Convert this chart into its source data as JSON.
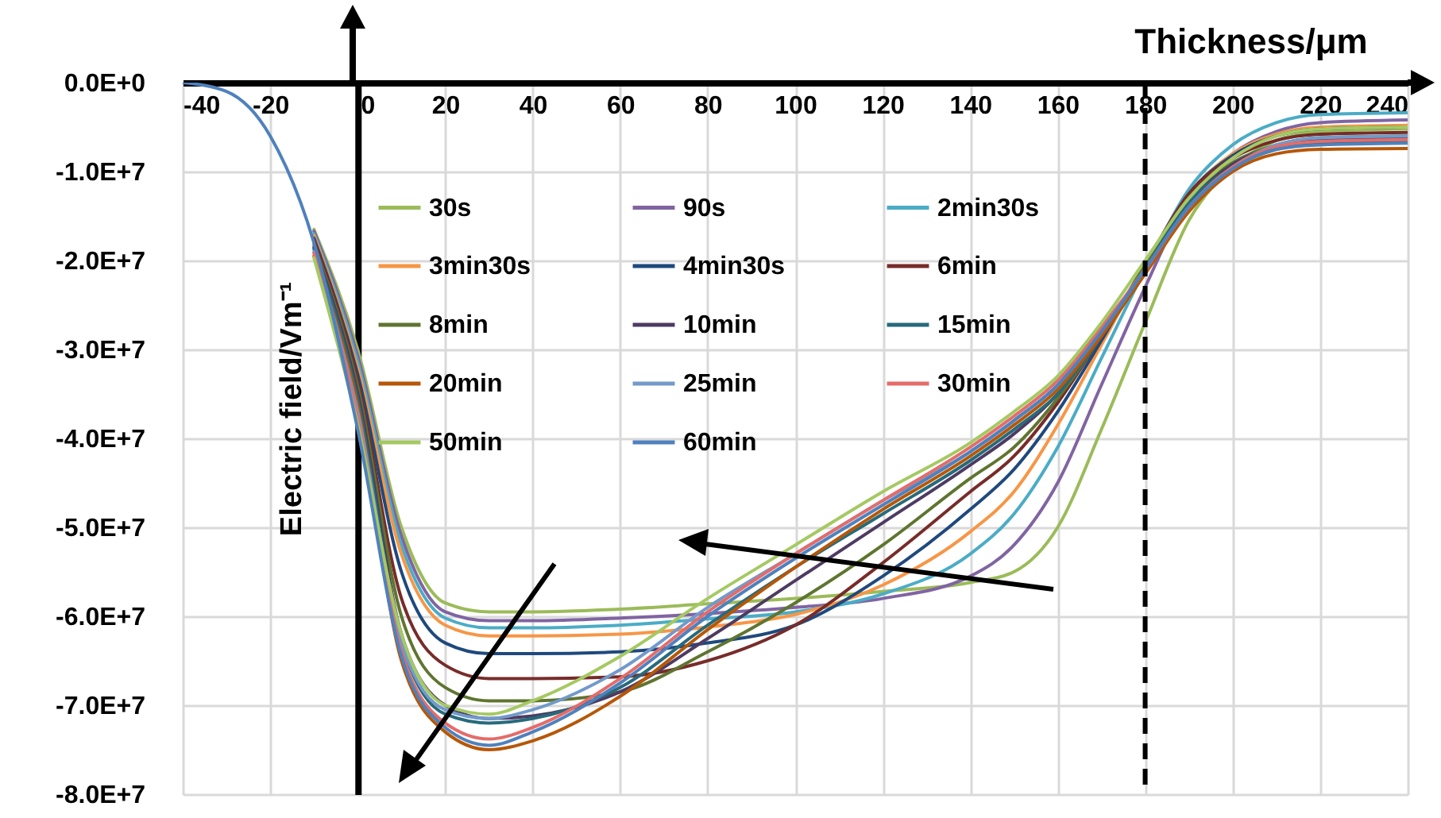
{
  "chart_data": {
    "type": "line",
    "xlabel": "Thickness/μm",
    "ylabel": "Electric field/Vm⁻¹",
    "x": [
      -40,
      -30,
      -20,
      -10,
      0,
      10,
      20,
      30,
      40,
      60,
      80,
      100,
      120,
      140,
      150,
      160,
      170,
      180,
      190,
      200,
      210,
      220,
      240
    ],
    "series": [
      {
        "name": "30s",
        "color": "#9bbb59",
        "values": [
          null,
          null,
          null,
          -16500000.0,
          -30000000.0,
          -50000000.0,
          -58500000.0,
          -59500000.0,
          -59500000.0,
          -59200000.0,
          -58600000.0,
          -58000000.0,
          -57200000.0,
          -56200000.0,
          -55000000.0,
          -50000000.0,
          -39000000.0,
          -27000000.0,
          -15500000.0,
          -9500000.0,
          -6500000.0,
          -5500000.0,
          -5200000.0
        ]
      },
      {
        "name": "90s",
        "color": "#8064a2",
        "values": [
          null,
          null,
          null,
          -16700000.0,
          -30700000.0,
          -51000000.0,
          -59500000.0,
          -60500000.0,
          -60500000.0,
          -60200000.0,
          -59700000.0,
          -59000000.0,
          -58000000.0,
          -55500000.0,
          -52000000.0,
          -45000000.0,
          -34000000.0,
          -23000000.0,
          -13000000.0,
          -8000000.0,
          -5500000.0,
          -4500000.0,
          -4200000.0
        ]
      },
      {
        "name": "2min30s",
        "color": "#4bacc6",
        "values": [
          null,
          null,
          null,
          -17000000.0,
          -31400000.0,
          -52000000.0,
          -60200000.0,
          -61300000.0,
          -61300000.0,
          -61000000.0,
          -60300000.0,
          -59500000.0,
          -57500000.0,
          -53000000.0,
          -48500000.0,
          -41000000.0,
          -31000000.0,
          -21000000.0,
          -12000000.0,
          -7000000.0,
          -4500000.0,
          -3600000.0,
          -3400000.0
        ]
      },
      {
        "name": "3min30s",
        "color": "#f79646",
        "values": [
          null,
          null,
          null,
          -17200000.0,
          -32100000.0,
          -53000000.0,
          -61000000.0,
          -62200000.0,
          -62200000.0,
          -62000000.0,
          -61200000.0,
          -59800000.0,
          -56500000.0,
          -50500000.0,
          -46000000.0,
          -38500000.0,
          -29500000.0,
          -20500000.0,
          -12500000.0,
          -8000000.0,
          -5800000.0,
          -5000000.0,
          -4800000.0
        ]
      },
      {
        "name": "4min30s",
        "color": "#1f497d",
        "values": [
          null,
          null,
          null,
          -17500000.0,
          -32800000.0,
          -55000000.0,
          -63000000.0,
          -64200000.0,
          -64200000.0,
          -64000000.0,
          -63000000.0,
          -61000000.0,
          -55500000.0,
          -48000000.0,
          -43500000.0,
          -37000000.0,
          -29000000.0,
          -20500000.0,
          -12500000.0,
          -8200000.0,
          -6000000.0,
          -5200000.0,
          -5000000.0
        ]
      },
      {
        "name": "6min",
        "color": "#772c2a",
        "values": [
          null,
          null,
          null,
          -17700000.0,
          -33500000.0,
          -58000000.0,
          -65500000.0,
          -67000000.0,
          -67000000.0,
          -66800000.0,
          -65000000.0,
          -61000000.0,
          -54000000.0,
          -46000000.0,
          -42000000.0,
          -36000000.0,
          -28500000.0,
          -20500000.0,
          -12500000.0,
          -8500000.0,
          -6500000.0,
          -5800000.0,
          -5600000.0
        ]
      },
      {
        "name": "8min",
        "color": "#5f7530",
        "values": [
          null,
          null,
          null,
          -18200000.0,
          -34200000.0,
          -60000000.0,
          -68000000.0,
          -69500000.0,
          -69500000.0,
          -68500000.0,
          -64000000.0,
          -58500000.0,
          -52000000.0,
          -44500000.0,
          -41000000.0,
          -35500000.0,
          -28500000.0,
          -20500000.0,
          -13000000.0,
          -9000000.0,
          -7000000.0,
          -6200000.0,
          -6000000.0
        ]
      },
      {
        "name": "10min",
        "color": "#4d3b62",
        "values": [
          null,
          null,
          null,
          -18500000.0,
          -34900000.0,
          -62000000.0,
          -70000000.0,
          -71500000.0,
          -71200000.0,
          -68500000.0,
          -62500000.0,
          -56000000.0,
          -49500000.0,
          -43000000.0,
          -39500000.0,
          -35000000.0,
          -28500000.0,
          -21000000.0,
          -13500000.0,
          -9200000.0,
          -7200000.0,
          -6500000.0,
          -6300000.0
        ]
      },
      {
        "name": "15min",
        "color": "#276a7c",
        "values": [
          null,
          null,
          null,
          -18700000.0,
          -35600000.0,
          -63000000.0,
          -71000000.0,
          -72000000.0,
          -71500000.0,
          -68000000.0,
          -61000000.0,
          -54500000.0,
          -48500000.0,
          -42500000.0,
          -39000000.0,
          -35000000.0,
          -28500000.0,
          -21000000.0,
          -13500000.0,
          -9500000.0,
          -7500000.0,
          -6800000.0,
          -6600000.0
        ]
      },
      {
        "name": "20min",
        "color": "#b65708",
        "values": [
          null,
          null,
          null,
          -19500000.0,
          -36300000.0,
          -65000000.0,
          -73000000.0,
          -75000000.0,
          -74000000.0,
          -69000000.0,
          -61500000.0,
          -54500000.0,
          -48000000.0,
          -42000000.0,
          -38500000.0,
          -34500000.0,
          -28500000.0,
          -21500000.0,
          -14500000.0,
          -10000000.0,
          -8000000.0,
          -7500000.0,
          -7400000.0
        ]
      },
      {
        "name": "25min",
        "color": "#729aca",
        "values": [
          null,
          null,
          null,
          -19000000.0,
          -37000000.0,
          -63000000.0,
          -70500000.0,
          -71500000.0,
          -70500000.0,
          -66000000.0,
          -59000000.0,
          -53000000.0,
          -47000000.0,
          -41500000.0,
          -38000000.0,
          -34000000.0,
          -28000000.0,
          -21000000.0,
          -14000000.0,
          -9500000.0,
          -7000000.0,
          -6200000.0,
          -6000000.0
        ]
      },
      {
        "name": "30min",
        "color": "#e46c6a",
        "values": [
          null,
          null,
          null,
          -19200000.0,
          -37700000.0,
          -64000000.0,
          -72000000.0,
          -73800000.0,
          -72500000.0,
          -67000000.0,
          -59500000.0,
          -53000000.0,
          -47000000.0,
          -41000000.0,
          -37500000.0,
          -33500000.0,
          -27500000.0,
          -21000000.0,
          -14000000.0,
          -9500000.0,
          -7200000.0,
          -6600000.0,
          -6400000.0
        ]
      },
      {
        "name": "50min",
        "color": "#a5c963",
        "values": [
          null,
          null,
          null,
          -19700000.0,
          -38400000.0,
          -62000000.0,
          -70000000.0,
          -71000000.0,
          -69500000.0,
          -64500000.0,
          -58000000.0,
          -52000000.0,
          -46000000.0,
          -40500000.0,
          -37000000.0,
          -33000000.0,
          -27000000.0,
          -20000000.0,
          -13000000.0,
          -8500000.0,
          -6000000.0,
          -5200000.0,
          -5000000.0
        ]
      },
      {
        "name": "60min",
        "color": "#4f81bd",
        "values": [
          0,
          -1000000.0,
          -6000000.0,
          -18000000.0,
          -39000000.0,
          -64500000.0,
          -72500000.0,
          -74500000.0,
          -73000000.0,
          -67500000.0,
          -60000000.0,
          -53500000.0,
          -47500000.0,
          -41500000.0,
          -38000000.0,
          -34000000.0,
          -28000000.0,
          -21000000.0,
          -14000000.0,
          -9700000.0,
          -7500000.0,
          -7000000.0,
          -6800000.0
        ]
      }
    ],
    "xlim": [
      -40,
      240
    ],
    "xticks": [
      -40,
      -20,
      0,
      20,
      40,
      60,
      80,
      100,
      120,
      140,
      160,
      180,
      200,
      220,
      240
    ],
    "ylim": [
      -80000000.0,
      0
    ],
    "yticks": [
      {
        "value": 0,
        "label": "0.0E+0"
      },
      {
        "value": -10000000.0,
        "label": "-1.0E+7"
      },
      {
        "value": -20000000.0,
        "label": "-2.0E+7"
      },
      {
        "value": -30000000.0,
        "label": "-3.0E+7"
      },
      {
        "value": -40000000.0,
        "label": "-4.0E+7"
      },
      {
        "value": -50000000.0,
        "label": "-5.0E+7"
      },
      {
        "value": -60000000.0,
        "label": "-6.0E+7"
      },
      {
        "value": -70000000.0,
        "label": "-7.0E+7"
      },
      {
        "value": -80000000.0,
        "label": "-8.0E+7"
      }
    ],
    "ref_lines": [
      {
        "axis": "x",
        "value": 180,
        "color": "#000000",
        "line_style": "dashed"
      }
    ],
    "grid": true,
    "legend": "top",
    "line_style": "solid"
  }
}
